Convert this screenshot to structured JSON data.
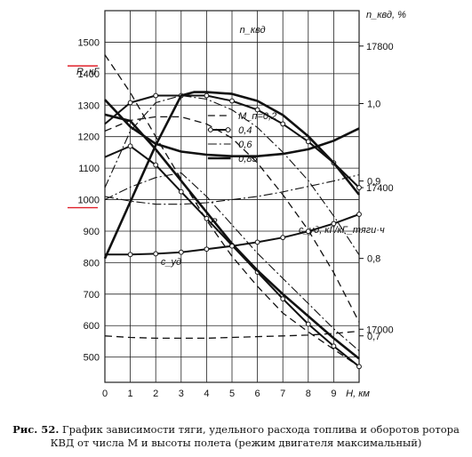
{
  "chart_data": {
    "type": "line",
    "axes": {
      "x": {
        "label": "H, км",
        "ticks": [
          "0",
          "1",
          "2",
          "3",
          "4",
          "5",
          "6",
          "7",
          "8",
          "9"
        ],
        "range": [
          0,
          10
        ]
      },
      "R": {
        "label": "R, кГ",
        "ticks": [
          "500",
          "600",
          "700",
          "800",
          "900",
          "1000",
          "1100",
          "1200",
          "1300",
          "1400",
          "1500"
        ],
        "range": [
          420,
          1600
        ]
      },
      "nkvd": {
        "label": "n_квд, %",
        "ticks": [
          "17000",
          "17400",
          "17800"
        ],
        "range": [
          16850,
          17900
        ]
      },
      "cud": {
        "label": "c_уд, кГ/кГ_тяги·ч",
        "ticks": [
          "0,7",
          "0,8",
          "0,9",
          "1,0"
        ],
        "range": [
          0.64,
          1.12
        ]
      }
    },
    "legend": {
      "title": "M_п=0,2",
      "entries": [
        {
          "label": "M_п=0,2",
          "style": "dashed",
          "mach": 0.2
        },
        {
          "label": "0,4",
          "style": "solid-markers",
          "mach": 0.4
        },
        {
          "label": "0,6",
          "style": "dashdot",
          "mach": 0.6
        },
        {
          "label": "0,85",
          "style": "solid-thick",
          "mach": 0.85
        }
      ]
    },
    "curve_labels": {
      "n": "n_квд",
      "R": "R",
      "c": "c_уд"
    },
    "series": [
      {
        "group": "n",
        "mach": 0.2,
        "x": [
          0,
          1,
          2,
          3,
          4,
          5,
          6,
          7,
          8,
          9,
          10
        ],
        "y": [
          17560,
          17590,
          17600,
          17600,
          17580,
          17540,
          17470,
          17380,
          17280,
          17160,
          17020
        ]
      },
      {
        "group": "n",
        "mach": 0.4,
        "x": [
          0,
          1,
          2,
          3,
          4,
          5,
          6,
          7,
          8,
          9,
          10
        ],
        "y": [
          17580,
          17640,
          17660,
          17660,
          17660,
          17645,
          17620,
          17580,
          17530,
          17470,
          17400
        ]
      },
      {
        "group": "n",
        "mach": 0.6,
        "x": [
          0,
          1,
          2,
          3,
          4,
          5,
          6,
          7,
          8,
          9,
          10
        ],
        "y": [
          17400,
          17560,
          17640,
          17660,
          17650,
          17620,
          17570,
          17500,
          17420,
          17320,
          17210
        ]
      },
      {
        "group": "n",
        "mach": 0.85,
        "x": [
          0,
          1,
          2,
          3,
          3.5,
          4,
          5,
          6,
          7,
          8,
          9,
          10
        ],
        "y": [
          17200,
          17360,
          17520,
          17660,
          17670,
          17670,
          17665,
          17645,
          17605,
          17545,
          17470,
          17380
        ]
      },
      {
        "group": "R",
        "mach": 0.2,
        "x": [
          0,
          1,
          2,
          3,
          4,
          5,
          6,
          7,
          8,
          9,
          10
        ],
        "y": [
          1460,
          1340,
          1200,
          1065,
          935,
          820,
          725,
          640,
          580,
          525,
          470
        ]
      },
      {
        "group": "R",
        "mach": 0.4,
        "x": [
          0,
          1,
          2,
          3,
          4,
          5,
          6,
          7,
          8,
          9,
          10
        ],
        "y": [
          1135,
          1170,
          1110,
          1025,
          940,
          855,
          770,
          685,
          605,
          535,
          470
        ]
      },
      {
        "group": "R",
        "mach": 0.6,
        "x": [
          0,
          1,
          2,
          3,
          4,
          5,
          6,
          7,
          8,
          9,
          10
        ],
        "y": [
          1000,
          1040,
          1070,
          1085,
          1010,
          920,
          830,
          750,
          670,
          590,
          520
        ]
      },
      {
        "group": "R",
        "mach": 0.85,
        "x": [
          0,
          1,
          2,
          3,
          4,
          5,
          6,
          7,
          8,
          9,
          10
        ],
        "y": [
          1270,
          1250,
          1160,
          1060,
          960,
          860,
          775,
          700,
          630,
          560,
          495
        ]
      },
      {
        "group": "c",
        "mach": 0.2,
        "x": [
          0,
          1,
          2,
          3,
          4,
          5,
          6,
          7,
          8,
          9,
          10
        ],
        "y": [
          0.7,
          0.698,
          0.697,
          0.697,
          0.697,
          0.698,
          0.699,
          0.7,
          0.701,
          0.703,
          0.706
        ]
      },
      {
        "group": "c",
        "mach": 0.4,
        "x": [
          0,
          1,
          2,
          3,
          4,
          5,
          6,
          7,
          8,
          9,
          10
        ],
        "y": [
          0.805,
          0.805,
          0.806,
          0.808,
          0.812,
          0.816,
          0.821,
          0.827,
          0.835,
          0.845,
          0.857
        ]
      },
      {
        "group": "c",
        "mach": 0.6,
        "x": [
          0,
          1,
          2,
          3,
          4,
          5,
          6,
          7,
          8,
          9,
          10
        ],
        "y": [
          0.88,
          0.874,
          0.87,
          0.87,
          0.872,
          0.876,
          0.88,
          0.886,
          0.893,
          0.9,
          0.908
        ]
      },
      {
        "group": "c",
        "mach": 0.85,
        "x": [
          0,
          1,
          2,
          3,
          4,
          5,
          6,
          7,
          8,
          9,
          10
        ],
        "y": [
          1.005,
          0.97,
          0.948,
          0.938,
          0.934,
          0.932,
          0.932,
          0.935,
          0.941,
          0.952,
          0.968
        ]
      }
    ]
  },
  "caption": {
    "label": "Рис. 52.",
    "text": " График зависимости тяги, удельного расхода топлива и оборотов ротора КВД от числа М и высоты полета (режим двигателя максимальный)"
  },
  "colors": {
    "ink": "#111111",
    "highlight": "#e0202a",
    "grid": "#222222"
  },
  "highlights": [
    1450,
    1000
  ]
}
